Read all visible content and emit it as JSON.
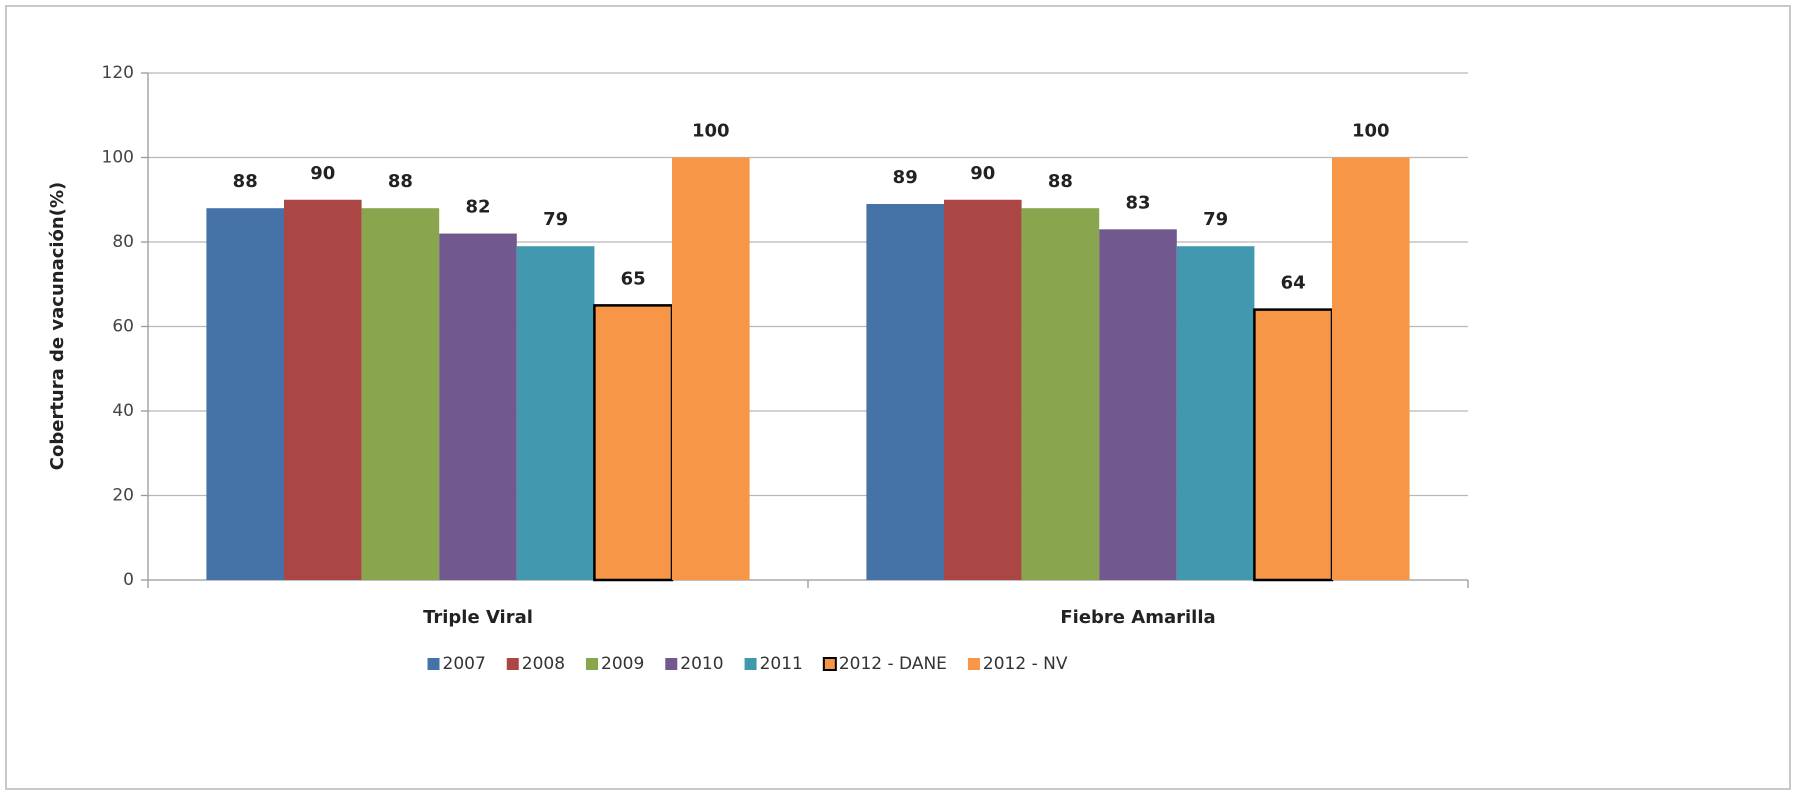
{
  "chart_data": {
    "type": "bar",
    "y_label": "Cobertura de vacunación(%)",
    "categories": [
      "Triple Viral",
      "Fiebre Amarilla"
    ],
    "series": [
      {
        "name": "2007",
        "color": "#4572a7",
        "values": [
          88,
          89
        ]
      },
      {
        "name": "2008",
        "color": "#aa4643",
        "values": [
          90,
          90
        ]
      },
      {
        "name": "2009",
        "color": "#89a54e",
        "values": [
          88,
          88
        ]
      },
      {
        "name": "2010",
        "color": "#71588f",
        "values": [
          82,
          83
        ]
      },
      {
        "name": "2011",
        "color": "#4198af",
        "values": [
          79,
          79
        ]
      },
      {
        "name": "2012 - DANE",
        "color": "#f79646",
        "stroke": "#000000",
        "values": [
          65,
          64
        ]
      },
      {
        "name": "2012 - NV",
        "color": "#f79646",
        "values": [
          100,
          100
        ]
      }
    ],
    "ylim": [
      0,
      120
    ],
    "yticks": [
      0,
      20,
      40,
      60,
      80,
      100,
      120
    ],
    "grid": true,
    "legend": "bottom"
  }
}
